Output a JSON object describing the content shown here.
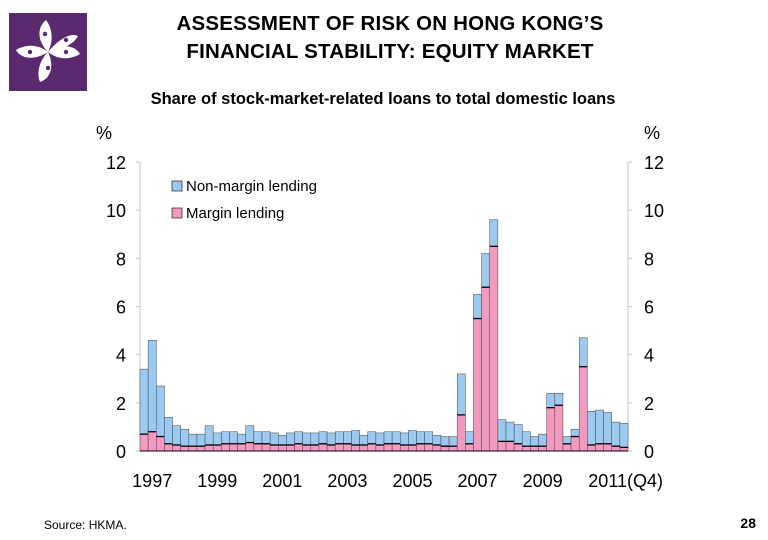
{
  "slide": {
    "title_line1": "ASSESSMENT OF RISK ON HONG KONG’S",
    "title_line2": "FINANCIAL STABILITY: EQUITY MARKET",
    "source": "Source: HKMA.",
    "page_number": "28",
    "logo_icon": "bauhinia-flower-icon",
    "brand_color": "#5b2a6e"
  },
  "chart_data": {
    "type": "bar",
    "stacked": true,
    "title": "Share of stock-market-related loans to total domestic loans",
    "ylabel_left": "%",
    "ylabel_right": "%",
    "ylim": [
      0,
      12
    ],
    "yticks": [
      0,
      2,
      4,
      6,
      8,
      10,
      12
    ],
    "xtick_labels": [
      "1997",
      "1999",
      "2001",
      "2003",
      "2005",
      "2007",
      "2009",
      "2011"
    ],
    "x_end_note": "(Q4)",
    "period": "quarterly, 1997 Q1 – 2011 Q4",
    "legend_position": "top-left",
    "grid": false,
    "series": [
      {
        "name": "Margin lending",
        "color": "#f49ac1",
        "values": [
          0.7,
          0.8,
          0.6,
          0.3,
          0.25,
          0.2,
          0.2,
          0.2,
          0.25,
          0.25,
          0.3,
          0.3,
          0.3,
          0.35,
          0.3,
          0.3,
          0.25,
          0.25,
          0.25,
          0.3,
          0.25,
          0.25,
          0.3,
          0.25,
          0.3,
          0.3,
          0.25,
          0.25,
          0.3,
          0.25,
          0.3,
          0.3,
          0.25,
          0.25,
          0.3,
          0.3,
          0.25,
          0.2,
          0.2,
          1.5,
          0.3,
          5.5,
          6.8,
          8.5,
          0.4,
          0.4,
          0.3,
          0.2,
          0.2,
          0.2,
          1.8,
          1.9,
          0.3,
          0.6,
          3.5,
          0.25,
          0.3,
          0.3,
          0.2,
          0.15
        ]
      },
      {
        "name": "Non-margin lending",
        "color": "#9cc9f0",
        "values": [
          2.7,
          3.8,
          2.1,
          1.1,
          0.8,
          0.7,
          0.5,
          0.5,
          0.8,
          0.5,
          0.5,
          0.5,
          0.4,
          0.7,
          0.5,
          0.5,
          0.5,
          0.4,
          0.5,
          0.5,
          0.5,
          0.5,
          0.5,
          0.5,
          0.5,
          0.5,
          0.6,
          0.4,
          0.5,
          0.5,
          0.5,
          0.5,
          0.5,
          0.6,
          0.5,
          0.5,
          0.4,
          0.4,
          0.4,
          1.7,
          0.5,
          1.0,
          1.4,
          1.1,
          0.9,
          0.8,
          0.8,
          0.6,
          0.4,
          0.5,
          0.6,
          0.5,
          0.3,
          0.3,
          1.2,
          1.4,
          1.4,
          1.3,
          1.0,
          1.0
        ]
      }
    ]
  }
}
